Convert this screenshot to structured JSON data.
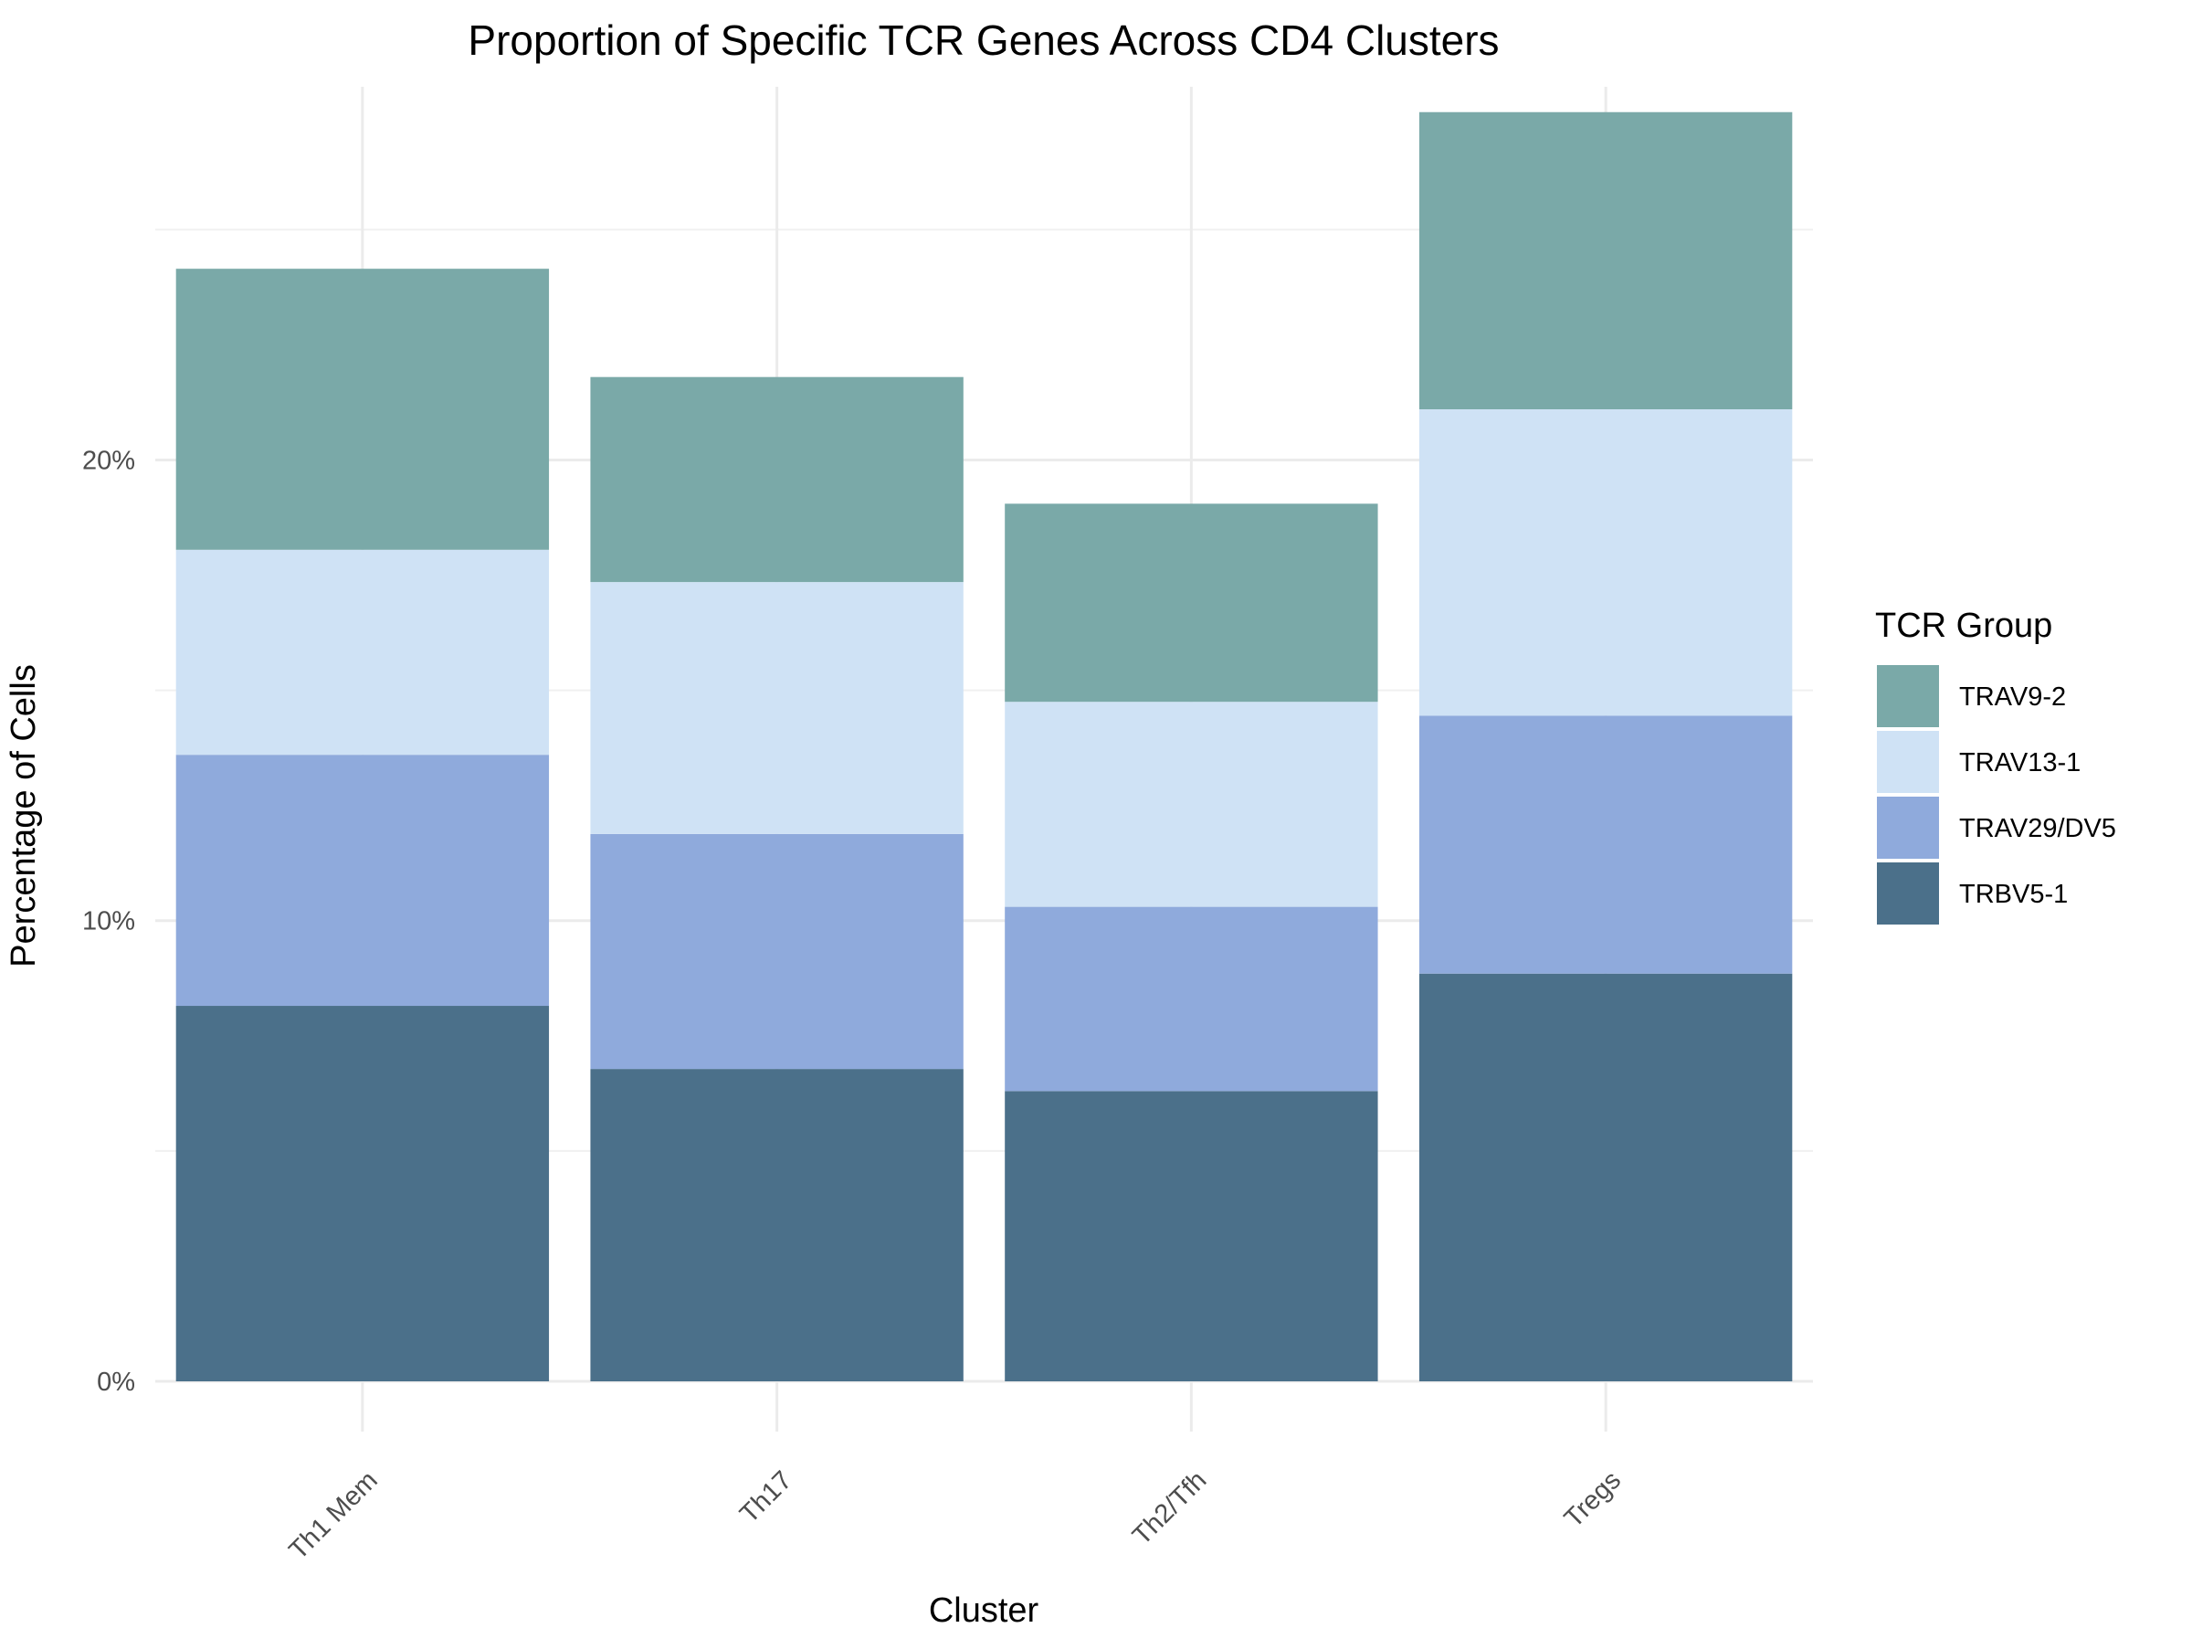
{
  "chart_data": {
    "type": "bar",
    "stacked": true,
    "title": "Proportion of Specific TCR Genes Across CD4 Clusters",
    "xlabel": "Cluster",
    "ylabel": "Percentage of Cells",
    "categories": [
      "Th1 Mem",
      "Th17",
      "Th2/Tfh",
      "Tregs"
    ],
    "series": [
      {
        "name": "TRBV5-1",
        "color": "#4b708a",
        "values": [
          8.15,
          6.78,
          6.3,
          8.85
        ]
      },
      {
        "name": "TRAV29/DV5",
        "color": "#8faadc",
        "values": [
          5.45,
          5.1,
          4.0,
          5.6
        ]
      },
      {
        "name": "TRAV13-1",
        "color": "#cfe2f5",
        "values": [
          4.45,
          5.47,
          4.45,
          6.65
        ]
      },
      {
        "name": "TRAV9-2",
        "color": "#7aa9a8",
        "values": [
          6.1,
          4.45,
          4.3,
          6.45
        ]
      }
    ],
    "y_ticks": [
      0,
      10,
      20
    ],
    "y_tick_labels": [
      "0%",
      "10%",
      "20%"
    ],
    "ylim": [
      0,
      28.1
    ],
    "grid": true,
    "legend": {
      "title": "TCR Group",
      "position": "right",
      "order": [
        "TRAV9-2",
        "TRAV13-1",
        "TRAV29/DV5",
        "TRBV5-1"
      ]
    }
  }
}
